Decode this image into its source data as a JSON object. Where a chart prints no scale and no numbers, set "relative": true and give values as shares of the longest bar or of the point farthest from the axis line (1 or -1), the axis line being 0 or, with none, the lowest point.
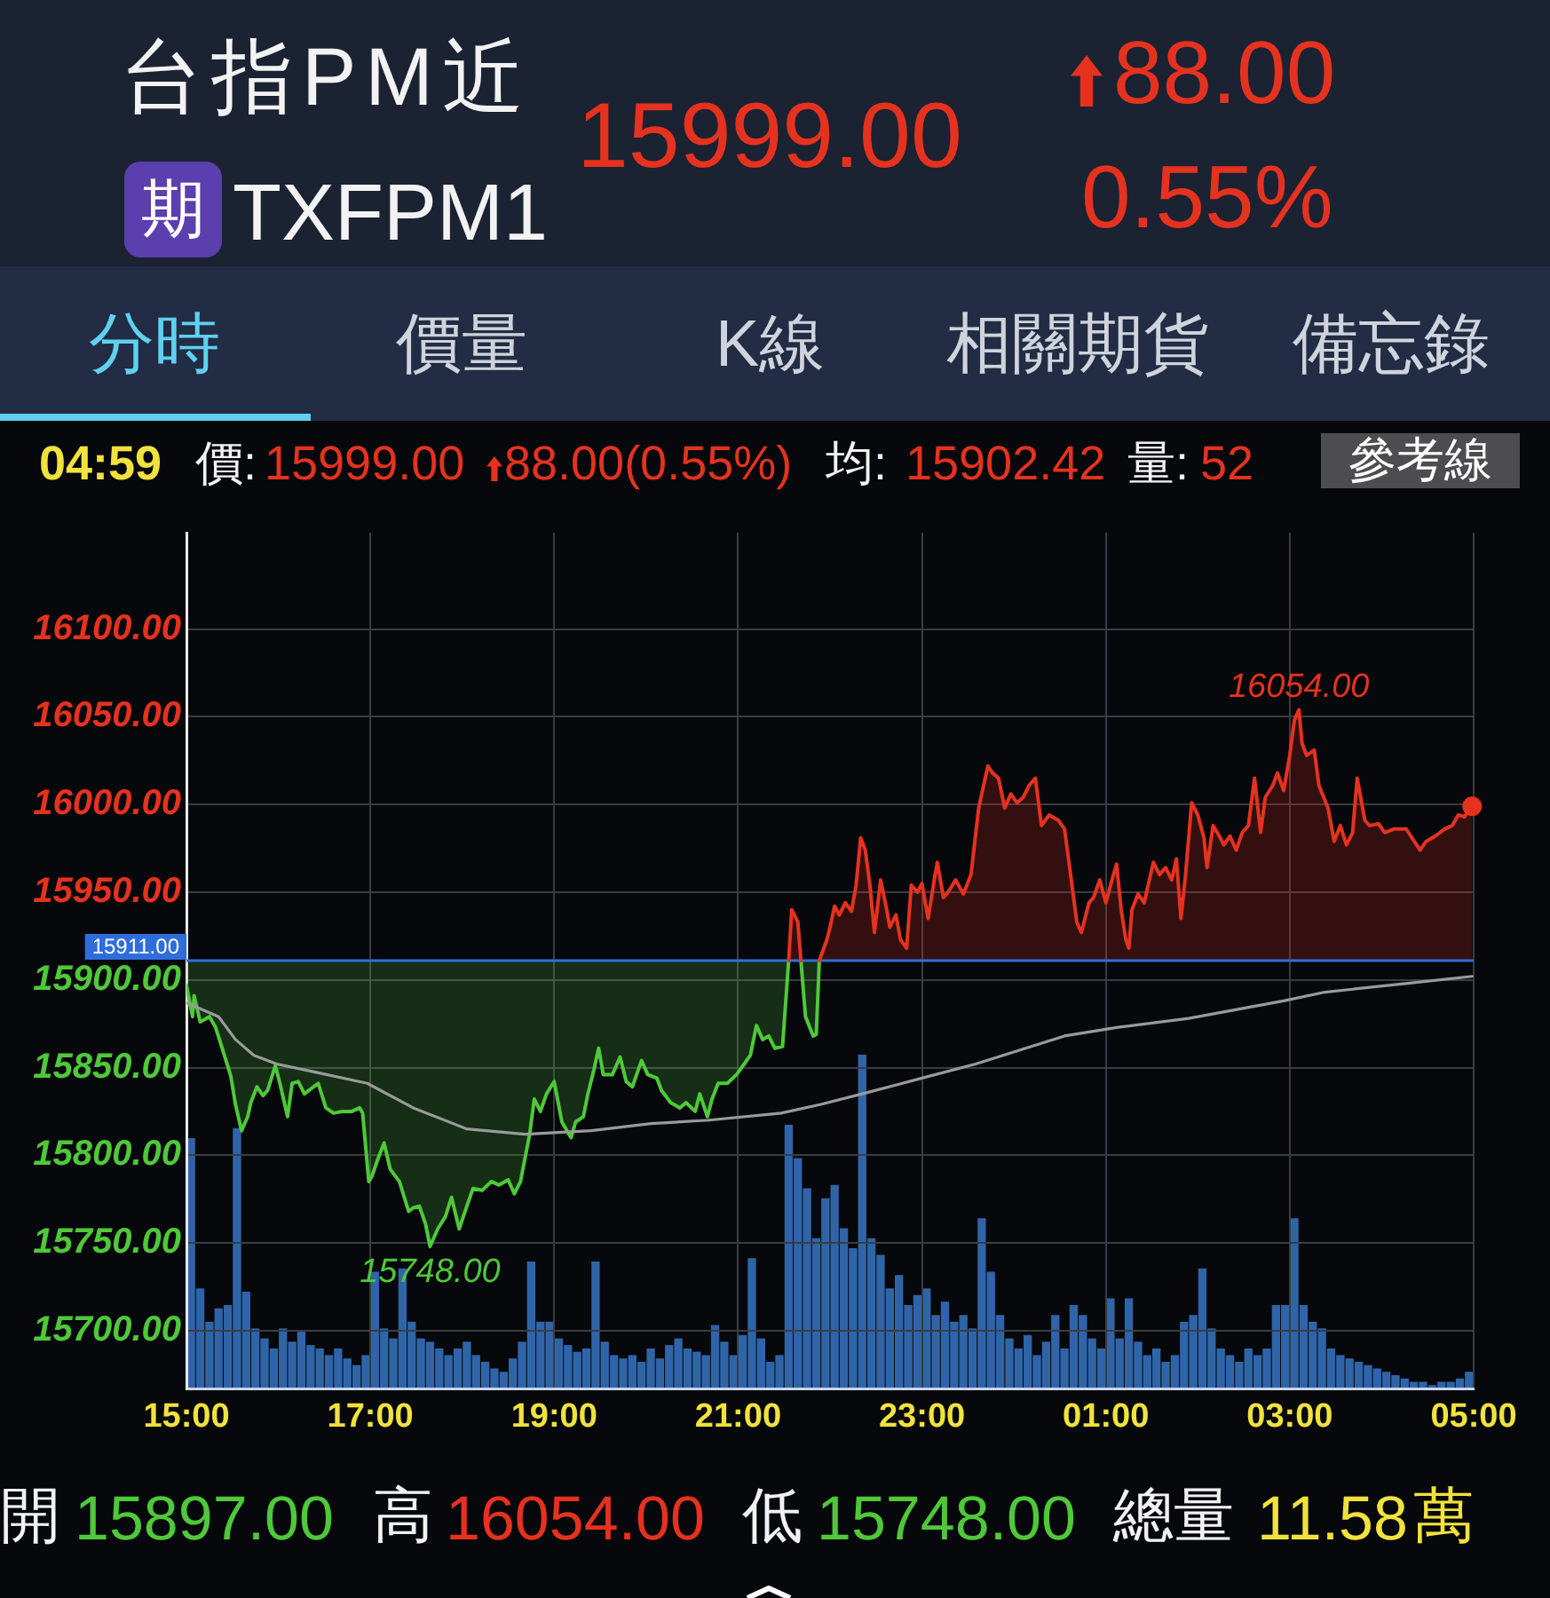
{
  "chart_data": [
    {
      "type": "line",
      "title": "台指PM近",
      "subtitle": "TXFPM1",
      "xlim": [
        "--01-04T15:00",
        "--01-05T05:00"
      ],
      "xticks": [
        {
          "value": "--01-04T15:00",
          "label": "15:00"
        },
        {
          "value": "--01-04T17:00",
          "label": "17:00"
        },
        {
          "value": "--01-04T19:00",
          "label": "19:00"
        },
        {
          "value": "--01-04T21:00",
          "label": "21:00"
        },
        {
          "value": "--01-04T23:00",
          "label": "23:00"
        },
        {
          "value": "--01-05T01:00",
          "label": "01:00"
        },
        {
          "value": "--01-05T03:00",
          "label": "03:00"
        },
        {
          "value": "--01-05T05:00",
          "label": "05:00"
        }
      ],
      "ylim": [
        15667,
        16155
      ],
      "yticks": [
        {
          "value": 15700,
          "label": "15700.00"
        },
        {
          "value": 15750,
          "label": "15750.00"
        },
        {
          "value": 15800,
          "label": "15800.00"
        },
        {
          "value": 15850,
          "label": "15850.00"
        },
        {
          "value": 15900,
          "label": "15900.00"
        },
        {
          "value": 15950,
          "label": "15950.00"
        },
        {
          "value": 16000,
          "label": "16000.00"
        },
        {
          "value": 16050,
          "label": "16050.00"
        },
        {
          "value": 16100,
          "label": "16100.00"
        }
      ],
      "grid": true,
      "series": [
        {
          "type": "line",
          "color": "#4fc83a",
          "x": [
            "--01-04T15:00",
            "--01-04T15:04",
            "--01-04T15:05",
            "--01-04T15:09",
            "--01-04T15:15",
            "--01-04T15:19",
            "--01-04T15:23",
            "--01-04T15:29",
            "--01-04T15:32",
            "--01-04T15:36",
            "--01-04T15:40",
            "--01-04T15:42",
            "--01-04T15:46",
            "--01-04T15:50",
            "--01-04T15:53",
            "--01-04T15:58",
            "--01-04T16:01",
            "--01-04T16:06",
            "--01-04T16:09",
            "--01-04T16:13",
            "--01-04T16:17",
            "--01-04T16:20",
            "--01-04T16:26",
            "--01-04T16:31",
            "--01-04T16:36",
            "--01-04T16:42",
            "--01-04T16:48",
            "--01-04T16:53",
            "--01-04T16:55",
            "--01-04T16:59",
            "--01-04T17:01",
            "--01-04T17:05",
            "--01-04T17:09",
            "--01-04T17:13",
            "--01-04T17:19",
            "--01-04T17:25",
            "--01-04T17:28",
            "--01-04T17:32",
            "--01-04T17:36",
            "--01-04T17:39",
            "--01-04T17:44",
            "--01-04T17:49",
            "--01-04T17:53",
            "--01-04T17:58",
            "--01-04T18:03",
            "--01-04T18:07",
            "--01-04T18:13",
            "--01-04T18:19",
            "--01-04T18:24",
            "--01-04T18:30",
            "--01-04T18:34",
            "--01-04T18:38",
            "--01-04T18:44",
            "--01-04T18:47",
            "--01-04T18:51",
            "--01-04T18:55",
            "--01-04T19:00",
            "--01-04T19:05",
            "--01-04T19:11",
            "--01-04T19:14",
            "--01-04T19:19",
            "--01-04T19:22",
            "--01-04T19:26",
            "--01-04T19:29",
            "--01-04T19:32",
            "--01-04T19:38",
            "--01-04T19:43",
            "--01-04T19:47",
            "--01-04T19:51",
            "--01-04T19:57",
            "--01-04T20:01",
            "--01-04T20:07",
            "--01-04T20:10",
            "--01-04T20:16",
            "--01-04T20:22",
            "--01-04T20:26",
            "--01-04T20:32",
            "--01-04T20:35",
            "--01-04T20:40",
            "--01-04T20:43",
            "--01-04T20:47",
            "--01-04T20:53",
            "--01-04T20:59",
            "--01-04T21:04",
            "--01-04T21:08",
            "--01-04T21:12",
            "--01-04T21:16",
            "--01-04T21:20",
            "--01-04T21:24",
            "--01-04T21:29",
            "--01-04T21:33",
            "--01-04T21:37",
            "--01-04T21:41",
            "--01-04T21:44",
            "--01-04T21:49",
            "--01-04T21:51",
            "--01-04T21:53"
          ],
          "values": [
            15897,
            15879,
            15891,
            15876,
            15879,
            15873,
            15862,
            15845,
            15829,
            15814,
            15822,
            15830,
            15839,
            15834,
            15837,
            15851,
            15841,
            15822,
            15841,
            15842,
            15835,
            15837,
            15841,
            15827,
            15824,
            15825,
            15825,
            15827,
            15824,
            15785,
            15788,
            15798,
            15807,
            15792,
            15785,
            15768,
            15770,
            15771,
            15761,
            15748,
            15758,
            15765,
            15776,
            15758,
            15771,
            15781,
            15780,
            15785,
            15783,
            15786,
            15778,
            15785,
            15812,
            15832,
            15825,
            15835,
            15842,
            15819,
            15810,
            15819,
            15822,
            15835,
            15849,
            15861,
            15846,
            15846,
            15856,
            15842,
            15839,
            15854,
            15846,
            15844,
            15837,
            15830,
            15827,
            15830,
            15825,
            15835,
            15822,
            15832,
            15841,
            15841,
            15846,
            15852,
            15857,
            15874,
            15866,
            15868,
            15861,
            15862,
            15911,
            null,
            15911,
            15879,
            15868,
            15869,
            15911
          ],
          "lower": [
            15897,
            15879,
            15891,
            15876,
            15879,
            15873,
            15862,
            15845,
            15829,
            15814,
            15822,
            15830,
            15839,
            15834,
            15837,
            15851,
            15841,
            15822,
            15841,
            15842,
            15835,
            15837,
            15841,
            15827,
            15824,
            15825,
            15825,
            15827,
            15824,
            15785,
            15788,
            15798,
            15807,
            15792,
            15785,
            15768,
            15770,
            15771,
            15761,
            15748,
            15758,
            15765,
            15776,
            15758,
            15771,
            15781,
            15780,
            15785,
            15783,
            15786,
            15778,
            15785,
            15812,
            15832,
            15825,
            15835,
            15842,
            15819,
            15810,
            15819,
            15822,
            15835,
            15849,
            15861,
            15846,
            15846,
            15856,
            15842,
            15839,
            15854,
            15846,
            15844,
            15837,
            15830,
            15827,
            15830,
            15825,
            15835,
            15822,
            15832,
            15841,
            15841,
            15846,
            15852,
            15857,
            15874,
            15866,
            15868,
            15861,
            15862,
            15911,
            null,
            15911,
            15879,
            15868,
            15869,
            15911
          ],
          "upper": [
            15911,
            15911,
            15911,
            15911,
            15911,
            15911,
            15911,
            15911,
            15911,
            15911,
            15911,
            15911,
            15911,
            15911,
            15911,
            15911,
            15911,
            15911,
            15911,
            15911,
            15911,
            15911,
            15911,
            15911,
            15911,
            15911,
            15911,
            15911,
            15911,
            15911,
            15911,
            15911,
            15911,
            15911,
            15911,
            15911,
            15911,
            15911,
            15911,
            15911,
            15911,
            15911,
            15911,
            15911,
            15911,
            15911,
            15911,
            15911,
            15911,
            15911,
            15911,
            15911,
            15911,
            15911,
            15911,
            15911,
            15911,
            15911,
            15911,
            15911,
            15911,
            15911,
            15911,
            15911,
            15911,
            15911,
            15911,
            15911,
            15911,
            15911,
            15911,
            15911,
            15911,
            15911,
            15911,
            15911,
            15911,
            15911,
            15911,
            15911,
            15911,
            15911,
            15911,
            15911,
            15911,
            15911,
            15911,
            15911,
            15911,
            15911,
            15911,
            null,
            15911,
            15911,
            15911,
            15911,
            15911
          ]
        },
        {
          "type": "line",
          "color": "#e5321f",
          "x": [
            "--01-04T21:33",
            "--01-04T21:35",
            "--01-04T21:39",
            "--01-04T21:41",
            "--01-04T21:47",
            "--01-04T21:53",
            "--01-04T21:58",
            "--01-04T22:00",
            "--01-04T22:03",
            "--01-04T22:06",
            "--01-04T22:10",
            "--01-04T22:14",
            "--01-04T22:17",
            "--01-04T22:20",
            "--01-04T22:23",
            "--01-04T22:26",
            "--01-04T22:29",
            "--01-04T22:33",
            "--01-04T22:37",
            "--01-04T22:39",
            "--01-04T22:43",
            "--01-04T22:46",
            "--01-04T22:50",
            "--01-04T22:53",
            "--01-04T22:57",
            "--01-04T23:00",
            "--01-04T23:04",
            "--01-04T23:08",
            "--01-04T23:10",
            "--01-04T23:14",
            "--01-04T23:17",
            "--01-04T23:22",
            "--01-04T23:27",
            "--01-04T23:32",
            "--01-04T23:37",
            "--01-04T23:43",
            "--01-04T23:46",
            "--01-04T23:50",
            "--01-04T23:54",
            "--01-04T23:58",
            "--01-05T00:02",
            "--01-05T00:06",
            "--01-05T00:10",
            "--01-05T00:14",
            "--01-05T00:18",
            "--01-05T00:23",
            "--01-05T00:29",
            "--01-05T00:33",
            "--01-05T00:37",
            "--01-05T00:41",
            "--01-05T00:44",
            "--01-05T00:49",
            "--01-05T00:52",
            "--01-05T00:56",
            "--01-05T01:00",
            "--01-05T01:04",
            "--01-05T01:07",
            "--01-05T01:10",
            "--01-05T01:13",
            "--01-05T01:15",
            "--01-05T01:17",
            "--01-05T01:21",
            "--01-05T01:25",
            "--01-05T01:31",
            "--01-05T01:35",
            "--01-05T01:39",
            "--01-05T01:43",
            "--01-05T01:46",
            "--01-05T01:49",
            "--01-05T01:52",
            "--01-05T01:56",
            "--01-05T02:00",
            "--01-05T02:04",
            "--01-05T02:06",
            "--01-05T02:10",
            "--01-05T02:14",
            "--01-05T02:17",
            "--01-05T02:21",
            "--01-05T02:25",
            "--01-05T02:29",
            "--01-05T02:33",
            "--01-05T02:37",
            "--01-05T02:41",
            "--01-05T02:44",
            "--01-05T02:49",
            "--01-05T02:52",
            "--01-05T02:56",
            "--01-05T03:00",
            "--01-05T03:03",
            "--01-05T03:06",
            "--01-05T03:08",
            "--01-05T03:11",
            "--01-05T03:16",
            "--01-05T03:19",
            "--01-05T03:25",
            "--01-05T03:29",
            "--01-05T03:33",
            "--01-05T03:37",
            "--01-05T03:41",
            "--01-05T03:44",
            "--01-05T03:49",
            "--01-05T03:52",
            "--01-05T03:58",
            "--01-05T04:02",
            "--01-05T04:08",
            "--01-05T04:16",
            "--01-05T04:19",
            "--01-05T04:25",
            "--01-05T04:29",
            "--01-05T04:35",
            "--01-05T04:41",
            "--01-05T04:46",
            "--01-05T04:50",
            "--01-05T04:54",
            "--01-05T04:59"
          ],
          "values": [
            15911,
            15940,
            15933,
            15911,
            null,
            15911,
            15923,
            15930,
            15942,
            15937,
            15944,
            15939,
            15954,
            15981,
            15974,
            15954,
            15927,
            15957,
            15940,
            15930,
            15937,
            15923,
            15918,
            15954,
            15950,
            15955,
            15935,
            15957,
            15967,
            15947,
            15950,
            15957,
            15949,
            15960,
            15998,
            16022,
            16018,
            16015,
            15998,
            16006,
            16001,
            16004,
            16011,
            16015,
            15988,
            15994,
            15991,
            15986,
            15960,
            15933,
            15927,
            15944,
            15947,
            15957,
            15944,
            15957,
            15966,
            15940,
            15923,
            15918,
            15940,
            15949,
            15944,
            15967,
            15960,
            15964,
            15957,
            15969,
            15935,
            15960,
            16001,
            15994,
            15981,
            15964,
            15988,
            15982,
            15977,
            15982,
            15974,
            15984,
            15988,
            16015,
            15984,
            16004,
            16011,
            16018,
            16008,
            16028,
            16048,
            16054,
            16035,
            16028,
            16031,
            16011,
            15998,
            15979,
            15988,
            15977,
            15984,
            16015,
            15991,
            15988,
            15989,
            15984,
            15986,
            15986,
            15982,
            15974,
            15979,
            15982,
            15986,
            15988,
            15994,
            15993,
            15999
          ],
          "lower": [
            15911,
            15911,
            15911,
            15911,
            null,
            15911,
            15911,
            15911,
            15911,
            15911,
            15911,
            15911,
            15911,
            15911,
            15911,
            15911,
            15911,
            15911,
            15911,
            15911,
            15911,
            15911,
            15911,
            15911,
            15911,
            15911,
            15911,
            15911,
            15911,
            15911,
            15911,
            15911,
            15911,
            15911,
            15911,
            15911,
            15911,
            15911,
            15911,
            15911,
            15911,
            15911,
            15911,
            15911,
            15911,
            15911,
            15911,
            15911,
            15911,
            15911,
            15911,
            15911,
            15911,
            15911,
            15911,
            15911,
            15911,
            15911,
            15911,
            15911,
            15911,
            15911,
            15911,
            15911,
            15911,
            15911,
            15911,
            15911,
            15911,
            15911,
            15911,
            15911,
            15911,
            15911,
            15911,
            15911,
            15911,
            15911,
            15911,
            15911,
            15911,
            15911,
            15911,
            15911,
            15911,
            15911,
            15911,
            15911,
            15911,
            15911,
            15911,
            15911,
            15911,
            15911,
            15911,
            15911,
            15911,
            15911,
            15911,
            15911,
            15911,
            15911,
            15911,
            15911,
            15911,
            15911,
            15911,
            15911,
            15911,
            15911,
            15911,
            15911,
            15911,
            15911,
            15911
          ],
          "upper": [
            15911,
            15940,
            15933,
            15911,
            null,
            15911,
            15923,
            15930,
            15942,
            15937,
            15944,
            15939,
            15954,
            15981,
            15974,
            15954,
            15927,
            15957,
            15940,
            15930,
            15937,
            15923,
            15918,
            15954,
            15950,
            15955,
            15935,
            15957,
            15967,
            15947,
            15950,
            15957,
            15949,
            15960,
            15998,
            16022,
            16018,
            16015,
            15998,
            16006,
            16001,
            16004,
            16011,
            16015,
            15988,
            15994,
            15991,
            15986,
            15960,
            15933,
            15927,
            15944,
            15947,
            15957,
            15944,
            15957,
            15966,
            15940,
            15923,
            15918,
            15940,
            15949,
            15944,
            15967,
            15960,
            15964,
            15957,
            15969,
            15935,
            15960,
            16001,
            15994,
            15981,
            15964,
            15988,
            15982,
            15977,
            15982,
            15974,
            15984,
            15988,
            16015,
            15984,
            16004,
            16011,
            16018,
            16008,
            16028,
            16048,
            16054,
            16035,
            16028,
            16031,
            16011,
            15998,
            15979,
            15988,
            15977,
            15984,
            16015,
            15991,
            15988,
            15989,
            15984,
            15986,
            15986,
            15982,
            15974,
            15979,
            15982,
            15986,
            15988,
            15994,
            15993,
            15999
          ]
        },
        {
          "type": "line",
          "color": "#9a9a9a",
          "x": [
            "--01-04T15:00",
            "--01-04T15:21",
            "--01-04T15:32",
            "--01-04T15:44",
            "--01-04T15:59",
            "--01-04T16:26",
            "--01-04T16:58",
            "--01-04T17:28",
            "--01-04T18:03",
            "--01-04T18:41",
            "--01-04T19:24",
            "--01-04T20:03",
            "--01-04T20:41",
            "--01-04T21:28",
            "--01-04T21:54",
            "--01-04T22:21",
            "--01-04T23:00",
            "--01-04T23:35",
            "--01-05T00:33",
            "--01-05T01:08",
            "--01-05T01:54",
            "--01-05T02:56",
            "--01-05T03:23",
            "--01-05T04:17",
            "--01-05T04:59"
          ],
          "values": [
            15887,
            15879,
            15866,
            15857,
            15852,
            15847,
            15841,
            15827,
            15815,
            15812,
            15814,
            15818,
            15820,
            15824,
            15829,
            15835,
            15844,
            15852,
            15868,
            15873,
            15878,
            15888,
            15893,
            15898,
            15902
          ]
        },
        {
          "type": "scatter",
          "color": "#e5321f",
          "marker": "circle",
          "x": [
            "--01-05T04:59"
          ],
          "values": [
            15999
          ]
        }
      ],
      "ref_lines": [
        {
          "axis": "y",
          "value": 15911,
          "label": "15911.00",
          "color": "#2f6ddc"
        }
      ],
      "annotations": [
        "期",
        "15999.00",
        "88.00",
        "0.55%",
        "分時",
        "價量",
        "K線",
        "相關期貨",
        "備忘錄",
        "04:59",
        "價:",
        "15999.00",
        "88.00(0.55%)",
        "均:",
        "15902.42",
        "量:",
        "52",
        "參考線",
        "開",
        "15897.00",
        "高",
        "16054.00",
        "低",
        "15748.00",
        "總量",
        "11.58",
        "萬",
        {
          "text": "16054.00",
          "x": "--01-05T03:06",
          "y": 16054
        },
        {
          "text": "15748.00",
          "x": "--01-04T17:39",
          "y": 15748
        }
      ]
    },
    {
      "type": "bar",
      "relative": true,
      "tick_labels": false,
      "xlim": [
        "--01-04T15:00",
        "--01-05T05:00"
      ],
      "color": "#2f65a8",
      "x": [
        "--01-04T15:03",
        "--01-04T15:09",
        "--01-04T15:15",
        "--01-04T15:21",
        "--01-04T15:27",
        "--01-04T15:33",
        "--01-04T15:39",
        "--01-04T15:45",
        "--01-04T15:51",
        "--01-04T15:57",
        "--01-04T16:03",
        "--01-04T16:09",
        "--01-04T16:15",
        "--01-04T16:21",
        "--01-04T16:27",
        "--01-04T16:33",
        "--01-04T16:39",
        "--01-04T16:45",
        "--01-04T16:51",
        "--01-04T16:57",
        "--01-04T17:03",
        "--01-04T17:09",
        "--01-04T17:15",
        "--01-04T17:21",
        "--01-04T17:27",
        "--01-04T17:33",
        "--01-04T17:39",
        "--01-04T17:45",
        "--01-04T17:51",
        "--01-04T17:57",
        "--01-04T18:03",
        "--01-04T18:09",
        "--01-04T18:15",
        "--01-04T18:21",
        "--01-04T18:27",
        "--01-04T18:33",
        "--01-04T18:39",
        "--01-04T18:45",
        "--01-04T18:51",
        "--01-04T18:57",
        "--01-04T19:03",
        "--01-04T19:09",
        "--01-04T19:15",
        "--01-04T19:21",
        "--01-04T19:27",
        "--01-04T19:33",
        "--01-04T19:39",
        "--01-04T19:45",
        "--01-04T19:51",
        "--01-04T19:57",
        "--01-04T20:03",
        "--01-04T20:09",
        "--01-04T20:15",
        "--01-04T20:21",
        "--01-04T20:27",
        "--01-04T20:33",
        "--01-04T20:39",
        "--01-04T20:45",
        "--01-04T20:51",
        "--01-04T20:57",
        "--01-04T21:03",
        "--01-04T21:09",
        "--01-04T21:15",
        "--01-04T21:21",
        "--01-04T21:27",
        "--01-04T21:33",
        "--01-04T21:39",
        "--01-04T21:45",
        "--01-04T21:51",
        "--01-04T21:57",
        "--01-04T22:03",
        "--01-04T22:09",
        "--01-04T22:15",
        "--01-04T22:21",
        "--01-04T22:27",
        "--01-04T22:33",
        "--01-04T22:39",
        "--01-04T22:45",
        "--01-04T22:51",
        "--01-04T22:57",
        "--01-04T23:03",
        "--01-04T23:09",
        "--01-04T23:15",
        "--01-04T23:21",
        "--01-04T23:27",
        "--01-04T23:33",
        "--01-04T23:39",
        "--01-04T23:45",
        "--01-04T23:51",
        "--01-04T23:57",
        "--01-05T00:03",
        "--01-05T00:09",
        "--01-05T00:15",
        "--01-05T00:21",
        "--01-05T00:27",
        "--01-05T00:33",
        "--01-05T00:39",
        "--01-05T00:45",
        "--01-05T00:51",
        "--01-05T00:57",
        "--01-05T01:03",
        "--01-05T01:09",
        "--01-05T01:15",
        "--01-05T01:21",
        "--01-05T01:27",
        "--01-05T01:33",
        "--01-05T01:39",
        "--01-05T01:45",
        "--01-05T01:51",
        "--01-05T01:57",
        "--01-05T02:03",
        "--01-05T02:09",
        "--01-05T02:15",
        "--01-05T02:21",
        "--01-05T02:27",
        "--01-05T02:33",
        "--01-05T02:39",
        "--01-05T02:45",
        "--01-05T02:51",
        "--01-05T02:57",
        "--01-05T03:03",
        "--01-05T03:09",
        "--01-05T03:15",
        "--01-05T03:21",
        "--01-05T03:27",
        "--01-05T03:33",
        "--01-05T03:39",
        "--01-05T03:45",
        "--01-05T03:51",
        "--01-05T03:57",
        "--01-05T04:03",
        "--01-05T04:09",
        "--01-05T04:15",
        "--01-05T04:21",
        "--01-05T04:27",
        "--01-05T04:33",
        "--01-05T04:39",
        "--01-05T04:45",
        "--01-05T04:51",
        "--01-05T04:57"
      ],
      "values": [
        0.75,
        0.3,
        0.2,
        0.24,
        0.25,
        0.78,
        0.29,
        0.18,
        0.15,
        0.12,
        0.18,
        0.14,
        0.17,
        0.13,
        0.12,
        0.1,
        0.12,
        0.09,
        0.07,
        0.1,
        0.35,
        0.18,
        0.15,
        0.36,
        0.2,
        0.15,
        0.14,
        0.12,
        0.1,
        0.12,
        0.14,
        0.1,
        0.08,
        0.06,
        0.05,
        0.09,
        0.14,
        0.38,
        0.2,
        0.2,
        0.15,
        0.13,
        0.11,
        0.12,
        0.38,
        0.14,
        0.1,
        0.09,
        0.1,
        0.08,
        0.12,
        0.09,
        0.13,
        0.15,
        0.12,
        0.11,
        0.1,
        0.19,
        0.14,
        0.1,
        0.16,
        0.39,
        0.15,
        0.08,
        0.1,
        0.79,
        0.69,
        0.6,
        0.45,
        0.57,
        0.61,
        0.48,
        0.42,
        1,
        0.45,
        0.4,
        0.3,
        0.34,
        0.25,
        0.28,
        0.3,
        0.22,
        0.26,
        0.2,
        0.22,
        0.18,
        0.51,
        0.35,
        0.22,
        0.15,
        0.12,
        0.16,
        0.1,
        0.14,
        0.22,
        0.12,
        0.25,
        0.22,
        0.15,
        0.12,
        0.27,
        0.15,
        0.27,
        0.14,
        0.1,
        0.12,
        0.08,
        0.1,
        0.2,
        0.22,
        0.36,
        0.18,
        0.12,
        0.1,
        0.08,
        0.12,
        0.1,
        0.12,
        0.25,
        0.25,
        0.51,
        0.25,
        0.2,
        0.18,
        0.12,
        0.1,
        0.09,
        0.08,
        0.07,
        0.06,
        0.05,
        0.04,
        0.03,
        0.02,
        0.02,
        0.01,
        0.02,
        0.02,
        0.03,
        0.05
      ]
    }
  ]
}
